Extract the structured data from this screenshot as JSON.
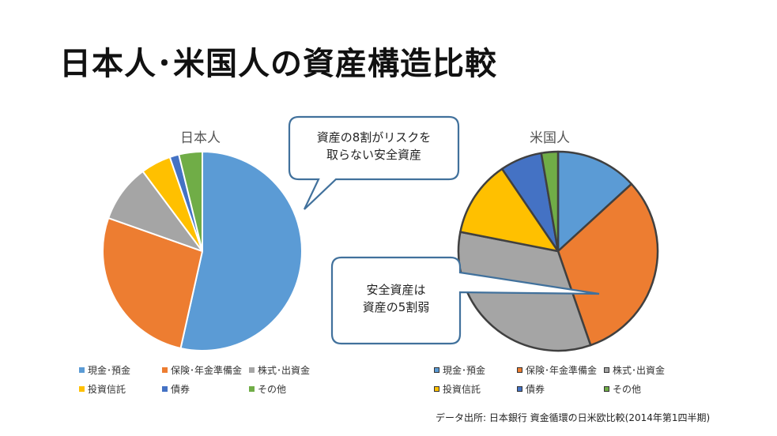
{
  "title": "日本人･米国人の資産構造比較",
  "callouts": {
    "top": [
      "資産の8割がリスクを",
      "取らない安全資産"
    ],
    "bottom": [
      "安全資産は",
      "資産の5割弱"
    ]
  },
  "source": "データ出所: 日本銀行 資金循環の日米欧比較(2014年第1四半期)",
  "categories": [
    "現金･預金",
    "保険･年金準備金",
    "株式･出資金",
    "投資信託",
    "債券",
    "その他"
  ],
  "colors": [
    "#5b9bd5",
    "#ed7d31",
    "#a5a5a5",
    "#ffc000",
    "#4472c4",
    "#70ad47"
  ],
  "chart_data": [
    {
      "type": "pie",
      "title": "日本人",
      "categories": [
        "現金･預金",
        "保険･年金準備金",
        "株式･出資金",
        "投資信託",
        "債券",
        "その他"
      ],
      "values": [
        53.5,
        26.9,
        9.4,
        4.9,
        1.5,
        3.8
      ]
    },
    {
      "type": "pie",
      "title": "米国人",
      "categories": [
        "現金･預金",
        "保険･年金準備金",
        "株式･出資金",
        "投資信託",
        "債券",
        "その他"
      ],
      "values": [
        13.2,
        31.5,
        33.4,
        12.4,
        6.8,
        2.7
      ]
    }
  ]
}
